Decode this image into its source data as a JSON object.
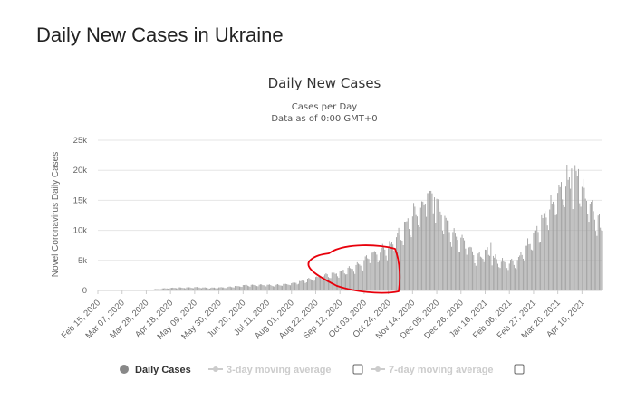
{
  "page": {
    "title": "Daily New Cases in Ukraine"
  },
  "colors": {
    "bar": "#a0a0a0",
    "grid": "#e6e6e6",
    "annotation": "#e8000b",
    "legend_inactive": "#cccccc"
  },
  "legend": {
    "daily_cases": "Daily Cases",
    "ma3": "3-day moving average",
    "ma7": "7-day moving average"
  },
  "chart_data": {
    "type": "bar",
    "title": "Daily New Cases",
    "subtitle_lines": [
      "Cases per Day",
      "Data as of 0:00 GMT+0"
    ],
    "ylabel": "Novel Coronavirus Daily Cases",
    "xlabel": "",
    "ylim": [
      0,
      25000
    ],
    "yticks": [
      {
        "value": 0,
        "label": "0"
      },
      {
        "value": 5000,
        "label": "5k"
      },
      {
        "value": 10000,
        "label": "10k"
      },
      {
        "value": 15000,
        "label": "15k"
      },
      {
        "value": 20000,
        "label": "20k"
      },
      {
        "value": 25000,
        "label": "25k"
      }
    ],
    "x_range": [
      "2020-02-15",
      "2021-04-27"
    ],
    "xticks": [
      "Feb 15, 2020",
      "Mar 07, 2020",
      "Mar 28, 2020",
      "Apr 18, 2020",
      "May 09, 2020",
      "May 30, 2020",
      "Jun 20, 2020",
      "Jul 11, 2020",
      "Aug 01, 2020",
      "Aug 22, 2020",
      "Sep 12, 2020",
      "Oct 03, 2020",
      "Oct 24, 2020",
      "Nov 14, 2020",
      "Dec 05, 2020",
      "Dec 26, 2020",
      "Jan 16, 2021",
      "Feb 06, 2021",
      "Feb 27, 2021",
      "Mar 20, 2021",
      "Apr 10, 2021"
    ],
    "grid": true,
    "legend_position": "bottom",
    "series": [
      {
        "name": "Daily Cases",
        "anchors": [
          [
            "2020-02-15",
            0
          ],
          [
            "2020-03-14",
            5
          ],
          [
            "2020-03-28",
            60
          ],
          [
            "2020-04-11",
            300
          ],
          [
            "2020-04-25",
            450
          ],
          [
            "2020-05-09",
            500
          ],
          [
            "2020-05-23",
            400
          ],
          [
            "2020-06-06",
            520
          ],
          [
            "2020-06-20",
            800
          ],
          [
            "2020-07-04",
            900
          ],
          [
            "2020-07-18",
            850
          ],
          [
            "2020-08-01",
            1100
          ],
          [
            "2020-08-15",
            1700
          ],
          [
            "2020-08-29",
            2300
          ],
          [
            "2020-09-12",
            2900
          ],
          [
            "2020-09-26",
            3800
          ],
          [
            "2020-10-10",
            5500
          ],
          [
            "2020-10-24",
            7000
          ],
          [
            "2020-11-07",
            10000
          ],
          [
            "2020-11-21",
            13500
          ],
          [
            "2020-11-28",
            15000
          ],
          [
            "2020-12-05",
            13500
          ],
          [
            "2020-12-19",
            9000
          ],
          [
            "2021-01-02",
            7000
          ],
          [
            "2021-01-09",
            5000
          ],
          [
            "2021-01-16",
            6500
          ],
          [
            "2021-01-23",
            5200
          ],
          [
            "2021-02-06",
            4200
          ],
          [
            "2021-02-13",
            5000
          ],
          [
            "2021-02-27",
            8500
          ],
          [
            "2021-03-06",
            11000
          ],
          [
            "2021-03-13",
            13000
          ],
          [
            "2021-03-20",
            15500
          ],
          [
            "2021-03-27",
            17000
          ],
          [
            "2021-04-03",
            18500
          ],
          [
            "2021-04-10",
            16500
          ],
          [
            "2021-04-17",
            14000
          ],
          [
            "2021-04-24",
            11000
          ],
          [
            "2021-04-27",
            9500
          ]
        ],
        "peaks": [
          [
            "2020-11-27",
            16200
          ],
          [
            "2020-12-03",
            15500
          ],
          [
            "2021-01-21",
            7900
          ],
          [
            "2021-04-01",
            20300
          ],
          [
            "2021-04-07",
            20200
          ]
        ]
      }
    ],
    "annotation": "hand-drawn red loop around Aug 22, 2020 – Oct 24, 2020"
  }
}
